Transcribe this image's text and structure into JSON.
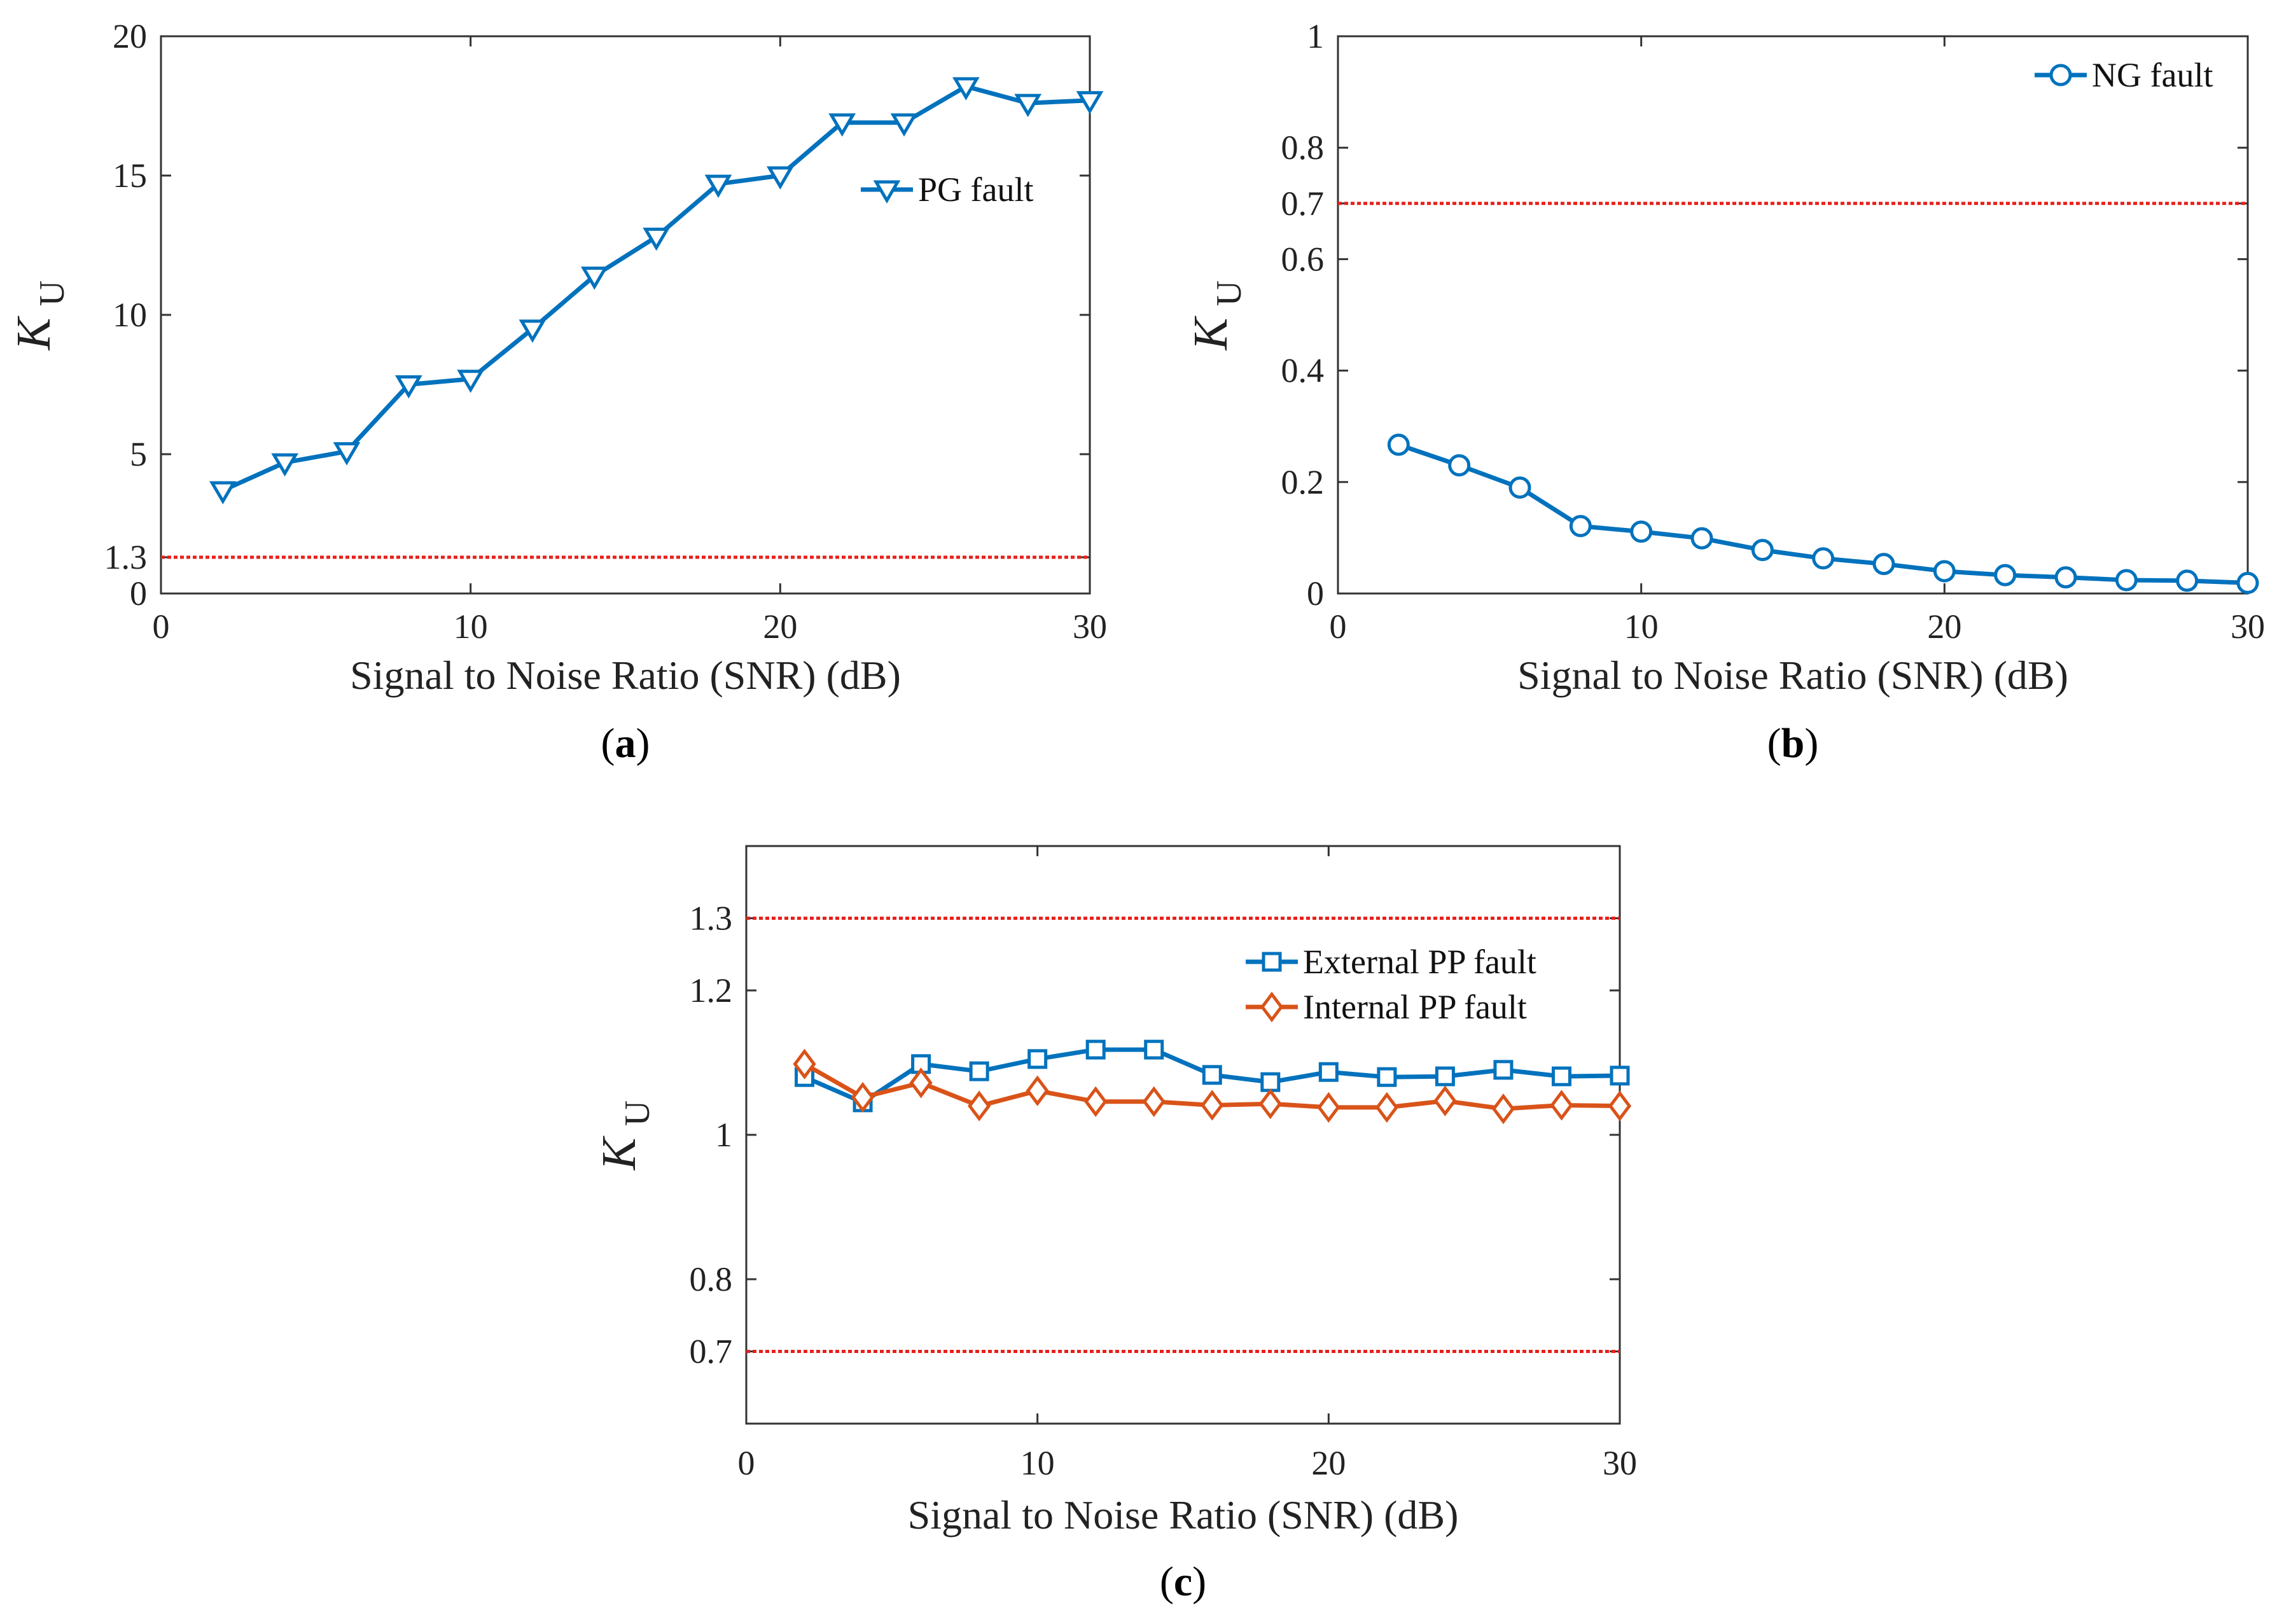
{
  "colors": {
    "blue": "#0072BD",
    "orange": "#D95319",
    "threshold": "#E8201A",
    "axis": "#333333"
  },
  "chart_data": [
    {
      "id": "a",
      "type": "line",
      "panel_label": "a",
      "xlabel": "Signal to Noise Ratio (SNR) (dB)",
      "ylabel_main": "K",
      "ylabel_sub": "U",
      "xlim": [
        0,
        30
      ],
      "ylim": [
        0,
        20
      ],
      "xticks": [
        0,
        10,
        20,
        30
      ],
      "yticks": [
        0,
        1.3,
        5,
        10,
        15,
        20
      ],
      "ytick_labels": [
        "0",
        "1.3",
        "5",
        "10",
        "15",
        "20"
      ],
      "thresholds": [
        1.3
      ],
      "legend_position": "upper-right",
      "series": [
        {
          "name": "PG fault",
          "marker": "triangle-down",
          "color": "#0072BD",
          "x": [
            2,
            4,
            6,
            8,
            10,
            12,
            14,
            16,
            18,
            20,
            22,
            24,
            26,
            28,
            30
          ],
          "y": [
            3.7,
            4.7,
            5.1,
            7.5,
            7.7,
            9.5,
            11.4,
            12.8,
            14.7,
            15.0,
            16.9,
            16.9,
            18.2,
            17.6,
            17.7
          ]
        }
      ]
    },
    {
      "id": "b",
      "type": "line",
      "panel_label": "b",
      "xlabel": "Signal to Noise Ratio (SNR) (dB)",
      "ylabel_main": "K",
      "ylabel_sub": "U",
      "xlim": [
        0,
        30
      ],
      "ylim": [
        0,
        1
      ],
      "xticks": [
        0,
        10,
        20,
        30
      ],
      "yticks": [
        0,
        0.2,
        0.4,
        0.6,
        0.7,
        0.8,
        1
      ],
      "ytick_labels": [
        "0",
        "0.2",
        "0.4",
        "0.6",
        "0.7",
        "0.8",
        "1"
      ],
      "thresholds": [
        0.7
      ],
      "legend_position": "top-right",
      "series": [
        {
          "name": "NG fault",
          "marker": "circle",
          "color": "#0072BD",
          "x": [
            2,
            4,
            6,
            8,
            10,
            12,
            14,
            16,
            18,
            20,
            22,
            24,
            26,
            28,
            30
          ],
          "y": [
            0.267,
            0.23,
            0.19,
            0.121,
            0.111,
            0.099,
            0.078,
            0.063,
            0.053,
            0.04,
            0.033,
            0.029,
            0.024,
            0.023,
            0.019
          ]
        }
      ]
    },
    {
      "id": "c",
      "type": "line",
      "panel_label": "c",
      "xlabel": "Signal to Noise Ratio (SNR) (dB)",
      "ylabel_main": "K",
      "ylabel_sub": "U",
      "xlim": [
        0,
        30
      ],
      "ylim": [
        0.6,
        1.4
      ],
      "xticks": [
        0,
        10,
        20,
        30
      ],
      "yticks": [
        0.7,
        0.8,
        1,
        1.2,
        1.3
      ],
      "ytick_labels": [
        "0.7",
        "0.8",
        "1",
        "1.2",
        "1.3"
      ],
      "thresholds": [
        0.7,
        1.3
      ],
      "legend_position": "upper-right",
      "series": [
        {
          "name": "External PP fault",
          "marker": "square",
          "color": "#0072BD",
          "x": [
            2,
            4,
            6,
            8,
            10,
            12,
            14,
            16,
            18,
            20,
            22,
            24,
            26,
            28,
            30
          ],
          "y": [
            1.08,
            1.045,
            1.098,
            1.088,
            1.105,
            1.118,
            1.118,
            1.083,
            1.073,
            1.087,
            1.08,
            1.081,
            1.09,
            1.081,
            1.082
          ]
        },
        {
          "name": "Internal PP fault",
          "marker": "diamond",
          "color": "#D95319",
          "x": [
            2,
            4,
            6,
            8,
            10,
            12,
            14,
            16,
            18,
            20,
            22,
            24,
            26,
            28,
            30
          ],
          "y": [
            1.098,
            1.052,
            1.072,
            1.04,
            1.061,
            1.046,
            1.046,
            1.041,
            1.043,
            1.038,
            1.038,
            1.047,
            1.036,
            1.041,
            1.04
          ]
        }
      ]
    }
  ]
}
